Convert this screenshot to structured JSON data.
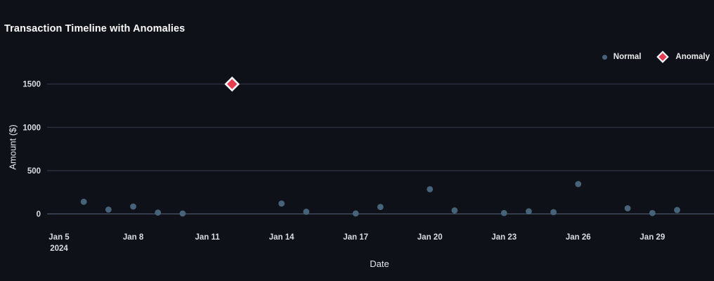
{
  "colors": {
    "background": "#0e1117",
    "title_text": "#fafafa",
    "tick_text": "#d9dce1",
    "grid": "#2e3544",
    "zero_line": "#4c5468",
    "normal_marker": "#47637a",
    "anomaly_marker": "#e63e50",
    "anomaly_border": "#f4f6f8"
  },
  "chart_data": {
    "type": "scatter",
    "title": "Transaction Timeline with Anomalies",
    "xlabel": "Date",
    "ylabel": "Amount ($)",
    "grid": true,
    "legend_position": "top-right",
    "y_ticks": [
      0,
      500,
      1000,
      1500
    ],
    "ylim": [
      -60,
      1620
    ],
    "x_ticks": [
      {
        "label": "Jan 5",
        "sublabel": "2024",
        "day": 0
      },
      {
        "label": "Jan 8",
        "day": 3
      },
      {
        "label": "Jan 11",
        "day": 6
      },
      {
        "label": "Jan 14",
        "day": 9
      },
      {
        "label": "Jan 17",
        "day": 12
      },
      {
        "label": "Jan 20",
        "day": 15
      },
      {
        "label": "Jan 23",
        "day": 18
      },
      {
        "label": "Jan 26",
        "day": 21
      },
      {
        "label": "Jan 29",
        "day": 24
      }
    ],
    "series": [
      {
        "name": "Normal",
        "marker": "circle",
        "color": "#47637a",
        "points": [
          {
            "date": "Jan 6",
            "day": 1,
            "value": 140
          },
          {
            "date": "Jan 7",
            "day": 2,
            "value": 50
          },
          {
            "date": "Jan 8",
            "day": 3,
            "value": 85
          },
          {
            "date": "Jan 9",
            "day": 4,
            "value": 15
          },
          {
            "date": "Jan 10",
            "day": 5,
            "value": 5
          },
          {
            "date": "Jan 14",
            "day": 9,
            "value": 120
          },
          {
            "date": "Jan 15",
            "day": 10,
            "value": 25
          },
          {
            "date": "Jan 17",
            "day": 12,
            "value": 5
          },
          {
            "date": "Jan 18",
            "day": 13,
            "value": 80
          },
          {
            "date": "Jan 20",
            "day": 15,
            "value": 285
          },
          {
            "date": "Jan 21",
            "day": 16,
            "value": 40
          },
          {
            "date": "Jan 23",
            "day": 18,
            "value": 10
          },
          {
            "date": "Jan 24",
            "day": 19,
            "value": 30
          },
          {
            "date": "Jan 25",
            "day": 20,
            "value": 20
          },
          {
            "date": "Jan 26",
            "day": 21,
            "value": 345
          },
          {
            "date": "Jan 28",
            "day": 23,
            "value": 65
          },
          {
            "date": "Jan 29",
            "day": 24,
            "value": 10
          },
          {
            "date": "Jan 30",
            "day": 25,
            "value": 45
          }
        ]
      },
      {
        "name": "Anomaly",
        "marker": "diamond",
        "color": "#e63e50",
        "border_color": "#f4f6f8",
        "points": [
          {
            "date": "Jan 12",
            "day": 7,
            "value": 1500
          }
        ]
      }
    ]
  }
}
